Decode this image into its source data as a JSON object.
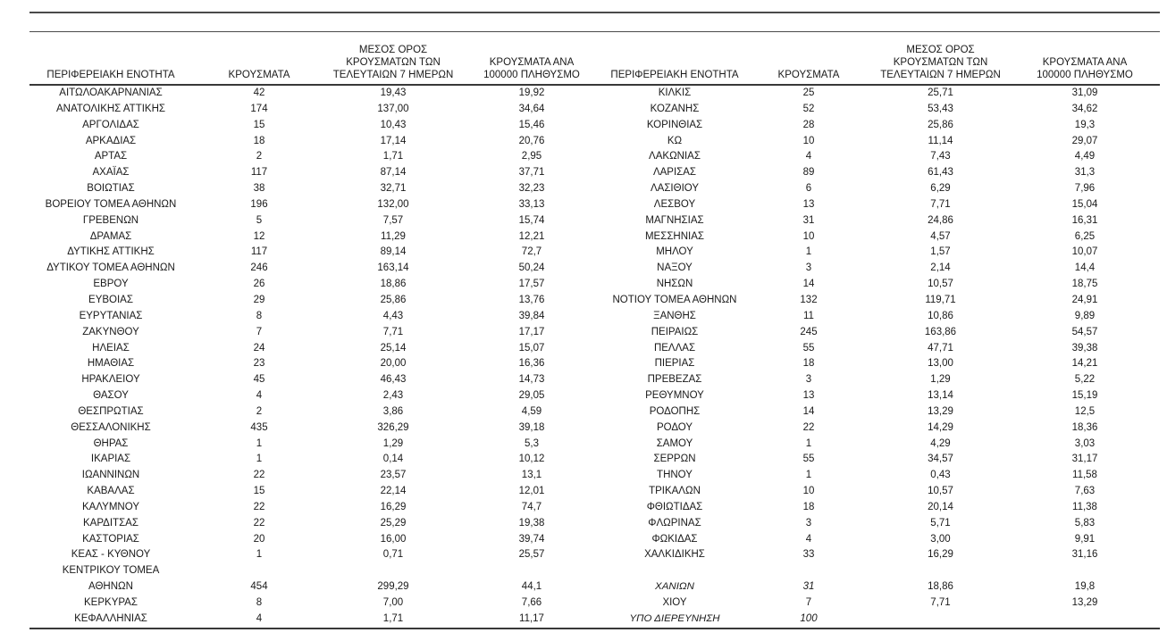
{
  "table": {
    "headers": [
      "ΠΕΡΙΦΕΡΕΙΑΚΗ ΕΝΟΤΗΤΑ",
      "ΚΡΟΥΣΜΑΤΑ",
      "ΜΕΣΟΣ ΟΡΟΣ\nΚΡΟΥΣΜΑΤΩΝ ΤΩΝ\nΤΕΛΕΥΤΑΙΩΝ 7 ΗΜΕΡΩΝ",
      "ΚΡΟΥΣΜΑΤΑ ΑΝΑ\n100000 ΠΛΗΘΥΣΜΟ",
      "ΠΕΡΙΦΕΡΕΙΑΚΗ ΕΝΟΤΗΤΑ",
      "ΚΡΟΥΣΜΑΤΑ",
      "ΜΕΣΟΣ ΟΡΟΣ\nΚΡΟΥΣΜΑΤΩΝ ΤΩΝ\nΤΕΛΕΥΤΑΙΩΝ 7 ΗΜΕΡΩΝ",
      "ΚΡΟΥΣΜΑΤΑ ΑΝΑ\n100000 ΠΛΗΘΥΣΜΟ"
    ],
    "left_rows": [
      [
        "ΑΙΤΩΛΟΑΚΑΡΝΑΝΙΑΣ",
        "42",
        "19,43",
        "19,92"
      ],
      [
        "ΑΝΑΤΟΛΙΚΗΣ ΑΤΤΙΚΗΣ",
        "174",
        "137,00",
        "34,64"
      ],
      [
        "ΑΡΓΟΛΙΔΑΣ",
        "15",
        "10,43",
        "15,46"
      ],
      [
        "ΑΡΚΑΔΙΑΣ",
        "18",
        "17,14",
        "20,76"
      ],
      [
        "ΑΡΤΑΣ",
        "2",
        "1,71",
        "2,95"
      ],
      [
        "ΑΧΑΪΑΣ",
        "117",
        "87,14",
        "37,71"
      ],
      [
        "ΒΟΙΩΤΙΑΣ",
        "38",
        "32,71",
        "32,23"
      ],
      [
        "ΒΟΡΕΙΟΥ ΤΟΜΕΑ ΑΘΗΝΩΝ",
        "196",
        "132,00",
        "33,13"
      ],
      [
        "ΓΡΕΒΕΝΩΝ",
        "5",
        "7,57",
        "15,74"
      ],
      [
        "ΔΡΑΜΑΣ",
        "12",
        "11,29",
        "12,21"
      ],
      [
        "ΔΥΤΙΚΗΣ ΑΤΤΙΚΗΣ",
        "117",
        "89,14",
        "72,7"
      ],
      [
        "ΔΥΤΙΚΟΥ ΤΟΜΕΑ ΑΘΗΝΩΝ",
        "246",
        "163,14",
        "50,24"
      ],
      [
        "ΕΒΡΟΥ",
        "26",
        "18,86",
        "17,57"
      ],
      [
        "ΕΥΒΟΙΑΣ",
        "29",
        "25,86",
        "13,76"
      ],
      [
        "ΕΥΡΥΤΑΝΙΑΣ",
        "8",
        "4,43",
        "39,84"
      ],
      [
        "ΖΑΚΥΝΘΟΥ",
        "7",
        "7,71",
        "17,17"
      ],
      [
        "ΗΛΕΙΑΣ",
        "24",
        "25,14",
        "15,07"
      ],
      [
        "ΗΜΑΘΙΑΣ",
        "23",
        "20,00",
        "16,36"
      ],
      [
        "ΗΡΑΚΛΕΙΟΥ",
        "45",
        "46,43",
        "14,73"
      ],
      [
        "ΘΑΣΟΥ",
        "4",
        "2,43",
        "29,05"
      ],
      [
        "ΘΕΣΠΡΩΤΙΑΣ",
        "2",
        "3,86",
        "4,59"
      ],
      [
        "ΘΕΣΣΑΛΟΝΙΚΗΣ",
        "435",
        "326,29",
        "39,18"
      ],
      [
        "ΘΗΡΑΣ",
        "1",
        "1,29",
        "5,3"
      ],
      [
        "ΙΚΑΡΙΑΣ",
        "1",
        "0,14",
        "10,12"
      ],
      [
        "ΙΩΑΝΝΙΝΩΝ",
        "22",
        "23,57",
        "13,1"
      ],
      [
        "ΚΑΒΑΛΑΣ",
        "15",
        "22,14",
        "12,01"
      ],
      [
        "ΚΑΛΥΜΝΟΥ",
        "22",
        "16,29",
        "74,7"
      ],
      [
        "ΚΑΡΔΙΤΣΑΣ",
        "22",
        "25,29",
        "19,38"
      ],
      [
        "ΚΑΣΤΟΡΙΑΣ",
        "20",
        "16,00",
        "39,74"
      ],
      [
        "ΚΕΑΣ - ΚΥΘΝΟΥ",
        "1",
        "0,71",
        "25,57"
      ],
      [
        "ΚΕΝΤΡΙΚΟΥ ΤΟΜΕΑ",
        "",
        "",
        ""
      ],
      [
        "ΑΘΗΝΩΝ",
        "454",
        "299,29",
        "44,1"
      ],
      [
        "ΚΕΡΚΥΡΑΣ",
        "8",
        "7,00",
        "7,66"
      ],
      [
        "ΚΕΦΑΛΛΗΝΙΑΣ",
        "4",
        "1,71",
        "11,17"
      ]
    ],
    "right_rows": [
      [
        "ΚΙΛΚΙΣ",
        "25",
        "25,71",
        "31,09"
      ],
      [
        "ΚΟΖΑΝΗΣ",
        "52",
        "53,43",
        "34,62"
      ],
      [
        "ΚΟΡΙΝΘΙΑΣ",
        "28",
        "25,86",
        "19,3"
      ],
      [
        "ΚΩ",
        "10",
        "11,14",
        "29,07"
      ],
      [
        "ΛΑΚΩΝΙΑΣ",
        "4",
        "7,43",
        "4,49"
      ],
      [
        "ΛΑΡΙΣΑΣ",
        "89",
        "61,43",
        "31,3"
      ],
      [
        "ΛΑΣΙΘΙΟΥ",
        "6",
        "6,29",
        "7,96"
      ],
      [
        "ΛΕΣΒΟΥ",
        "13",
        "7,71",
        "15,04"
      ],
      [
        "ΜΑΓΝΗΣΙΑΣ",
        "31",
        "24,86",
        "16,31"
      ],
      [
        "ΜΕΣΣΗΝΙΑΣ",
        "10",
        "4,57",
        "6,25"
      ],
      [
        "ΜΗΛΟΥ",
        "1",
        "1,57",
        "10,07"
      ],
      [
        "ΝΑΞΟΥ",
        "3",
        "2,14",
        "14,4"
      ],
      [
        "ΝΗΣΩΝ",
        "14",
        "10,57",
        "18,75"
      ],
      [
        "ΝΟΤΙΟΥ ΤΟΜΕΑ ΑΘΗΝΩΝ",
        "132",
        "119,71",
        "24,91"
      ],
      [
        "ΞΑΝΘΗΣ",
        "11",
        "10,86",
        "9,89"
      ],
      [
        "ΠΕΙΡΑΙΩΣ",
        "245",
        "163,86",
        "54,57"
      ],
      [
        "ΠΕΛΛΑΣ",
        "55",
        "47,71",
        "39,38"
      ],
      [
        "ΠΙΕΡΙΑΣ",
        "18",
        "13,00",
        "14,21"
      ],
      [
        "ΠΡΕΒΕΖΑΣ",
        "3",
        "1,29",
        "5,22"
      ],
      [
        "ΡΕΘΥΜΝΟΥ",
        "13",
        "13,14",
        "15,19"
      ],
      [
        "ΡΟΔΟΠΗΣ",
        "14",
        "13,29",
        "12,5"
      ],
      [
        "ΡΟΔΟΥ",
        "22",
        "14,29",
        "18,36"
      ],
      [
        "ΣΑΜΟΥ",
        "1",
        "4,29",
        "3,03"
      ],
      [
        "ΣΕΡΡΩΝ",
        "55",
        "34,57",
        "31,17"
      ],
      [
        "ΤΗΝΟΥ",
        "1",
        "0,43",
        "11,58"
      ],
      [
        "ΤΡΙΚΑΛΩΝ",
        "10",
        "10,57",
        "7,63"
      ],
      [
        "ΦΘΙΩΤΙΔΑΣ",
        "18",
        "20,14",
        "11,38"
      ],
      [
        "ΦΛΩΡΙΝΑΣ",
        "3",
        "5,71",
        "5,83"
      ],
      [
        "ΦΩΚΙΔΑΣ",
        "4",
        "3,00",
        "9,91"
      ],
      [
        "ΧΑΛΚΙΔΙΚΗΣ",
        "33",
        "16,29",
        "31,16"
      ],
      [
        "",
        "",
        "",
        ""
      ],
      [
        "ΧΑΝΙΩΝ",
        "31",
        "18,86",
        "19,8"
      ],
      [
        "ΧΙΟΥ",
        "7",
        "7,71",
        "13,29"
      ],
      [
        "ΥΠΟ ΔΙΕΡΕΥΝΗΣΗ",
        "100",
        "",
        ""
      ]
    ],
    "right_italic_cells": {
      "31": [
        0,
        1
      ],
      "33": [
        0,
        1
      ]
    },
    "colors": {
      "text": "#1a1a1a",
      "rule": "#4a4a4a",
      "header_rule": "#383838",
      "background": "#ffffff"
    }
  }
}
